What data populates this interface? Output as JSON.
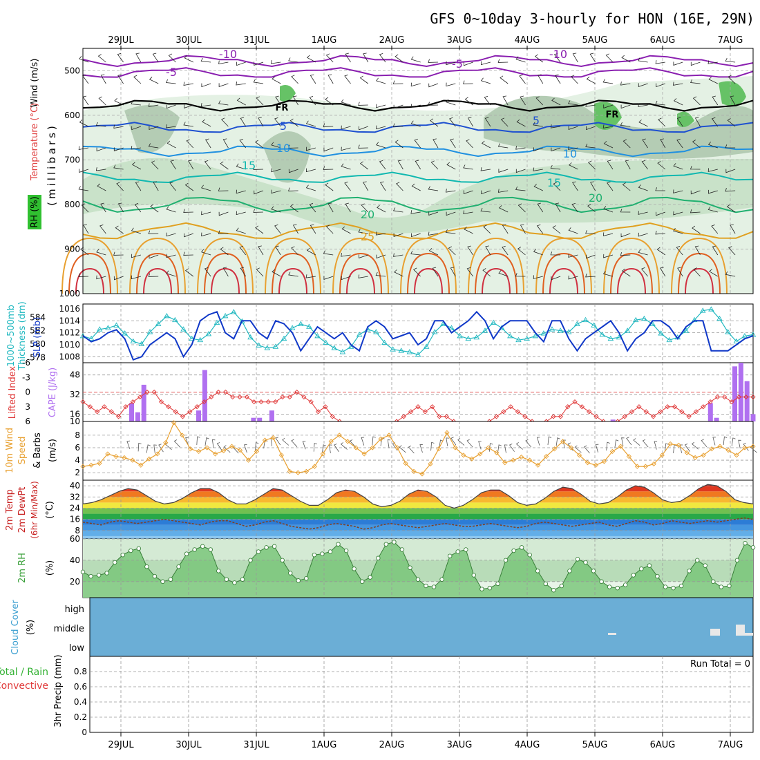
{
  "header": {
    "title": "GFS 0~10day 3-hourly for HON (16E, 29N)"
  },
  "chart_data": [
    {
      "type": "heatmap",
      "panel": "upper-air cross-section",
      "dates": [
        "29JUL",
        "30JUL",
        "31JUL",
        "1AUG",
        "2AUG",
        "3AUG",
        "4AUG",
        "5AUG",
        "6AUG",
        "7AUG"
      ],
      "ylabel": "(millibars)",
      "yticks": [
        500,
        600,
        700,
        800,
        900,
        1000
      ],
      "ylim": [
        1000,
        450
      ],
      "var_labels": {
        "wind": "Wind (m/s)",
        "temp": "Temperature (°C)",
        "rh": "RH (%)"
      },
      "colors": {
        "wind": "#000000",
        "temp": "#e04040",
        "rh": "#3c9e3c"
      },
      "isotherms": [
        {
          "label": "-10",
          "level_mb": 478,
          "color": "#8a1fb0"
        },
        {
          "label": "-5",
          "level_mb": 505,
          "color": "#8a1fb0"
        },
        {
          "label": "FR",
          "level_mb": 578,
          "color": "#000000"
        },
        {
          "label": "5",
          "level_mb": 628,
          "color": "#1e50d0"
        },
        {
          "label": "10",
          "level_mb": 680,
          "color": "#2090e0"
        },
        {
          "label": "15",
          "level_mb": 740,
          "color": "#10b8b0"
        },
        {
          "label": "20",
          "level_mb": 800,
          "color": "#20b070"
        },
        {
          "label": "25",
          "level_mb": 860,
          "color": "#e0a020"
        }
      ],
      "contour_labels": [
        "-10",
        "-5",
        "FR",
        "5",
        "10",
        "15",
        "20",
        "25",
        "-10",
        "-5",
        "FR",
        "5",
        "10",
        "15",
        "20"
      ]
    },
    {
      "type": "line",
      "panel": "SLP and thickness",
      "series": [
        {
          "name": "SLP (mb)",
          "color": "#1038c8",
          "values": [
            1011.5,
            1010.5,
            1011,
            1012,
            1012.5,
            1011,
            1007.5,
            1008,
            1010,
            1011,
            1012,
            1011,
            1008,
            1010,
            1014,
            1015,
            1015.5,
            1012,
            1011,
            1014,
            1014,
            1012,
            1011,
            1014,
            1013.5,
            1012,
            1009,
            1011,
            1013,
            1012,
            1011,
            1012,
            1010,
            1009,
            1013,
            1014,
            1013,
            1011,
            1011.5,
            1012,
            1010,
            1011,
            1014,
            1014,
            1012,
            1013,
            1014,
            1015.5,
            1014,
            1011,
            1013,
            1014,
            1014,
            1014,
            1012,
            1010.5,
            1014,
            1014,
            1011,
            1009,
            1011,
            1012,
            1013,
            1014,
            1012,
            1009,
            1011,
            1012,
            1014,
            1014,
            1013,
            1011,
            1013,
            1014,
            1014,
            1009,
            1009,
            1009,
            1010,
            1011,
            1011.5
          ]
        },
        {
          "name": "1000-500mb Thickness (dm)",
          "color": "#20b8c0",
          "values": [
            581.2,
            580.8,
            582.2,
            582.4,
            582.8,
            581.6,
            580.4,
            580.0,
            581.8,
            583.0,
            584.2,
            583.6,
            582.2,
            580.8,
            580.6,
            581.5,
            583.2,
            584.2,
            584.8,
            583.4,
            581.0,
            579.8,
            579.4,
            579.6,
            580.8,
            582.4,
            583.0,
            582.6,
            581.2,
            580.2,
            579.4,
            578.8,
            579.6,
            581.4,
            582.2,
            581.8,
            580.2,
            579.2,
            579.0,
            578.8,
            578.4,
            579.6,
            581.8,
            583.0,
            582.4,
            581.2,
            580.8,
            581.0,
            582.0,
            583.2,
            582.4,
            581.2,
            580.6,
            580.8,
            581.2,
            581.6,
            582.2,
            582.0,
            581.8,
            583.0,
            583.6,
            582.8,
            581.4,
            580.8,
            581.0,
            582.0,
            583.6,
            583.8,
            583.0,
            581.6,
            580.6,
            581.0,
            582.0,
            583.6,
            585.0,
            585.2,
            583.8,
            581.8,
            580.4,
            581.2,
            581.4
          ]
        }
      ],
      "slp_ticks": [
        1008,
        1010,
        1012,
        1014,
        1016
      ],
      "thk_ticks": [
        578,
        580,
        582,
        584
      ],
      "slp_label": "SLP (mb)",
      "thk_label_1": "1000~500mb",
      "thk_label_2": "Thickness (dm)"
    },
    {
      "type": "bar",
      "panel": "CAPE and Lifted Index",
      "series": [
        {
          "name": "CAPE (J/kg)",
          "color": "#b070f0",
          "values": [
            0,
            0,
            0,
            0,
            0,
            0,
            0,
            0,
            10,
            5,
            20,
            0,
            0,
            0,
            0,
            0,
            0,
            0,
            0,
            6,
            28,
            0,
            0,
            0,
            0,
            0,
            0,
            0,
            2,
            2,
            0,
            6,
            0,
            0,
            0,
            0,
            0,
            0,
            0,
            0,
            0,
            0,
            0,
            0,
            0,
            0,
            0,
            0,
            0,
            0,
            0,
            0,
            0,
            0,
            0,
            0,
            0,
            0,
            0,
            0,
            0,
            0,
            0,
            0,
            0,
            0,
            0,
            0,
            0,
            0,
            0,
            0,
            0,
            0,
            0,
            0,
            0,
            0,
            0,
            0,
            0,
            0,
            0,
            0,
            0,
            0,
            0,
            1,
            0,
            0,
            0,
            0,
            0,
            0,
            0,
            0,
            0,
            0,
            0,
            0,
            0,
            0,
            0,
            10,
            2,
            0,
            0,
            30,
            32,
            22,
            4
          ]
        },
        {
          "name": "Lifted Index",
          "color": "#e03838",
          "values": [
            2,
            3,
            4,
            3,
            4,
            5,
            3,
            2,
            1,
            0,
            0,
            2,
            3,
            4,
            5,
            4,
            3,
            2,
            1,
            0,
            0,
            1,
            1,
            1,
            2,
            2,
            2,
            2,
            1,
            1,
            0,
            1,
            2,
            4,
            3,
            5,
            6,
            7,
            8,
            9,
            7,
            8,
            8,
            7,
            6,
            5,
            4,
            3,
            4,
            3,
            5,
            5,
            6,
            7,
            8,
            9,
            8,
            6,
            5,
            4,
            3,
            4,
            5,
            6,
            7,
            6,
            5,
            5,
            3,
            2,
            3,
            4,
            5,
            6,
            8,
            6,
            5,
            4,
            3,
            4,
            5,
            4,
            3,
            3,
            4,
            5,
            4,
            3,
            2,
            1,
            1,
            2,
            1,
            1,
            1
          ]
        }
      ],
      "cape_ticks": [
        10,
        16,
        32,
        48
      ],
      "li_ticks": [
        6,
        3,
        0,
        -3,
        -6
      ],
      "cape_label": "CAPE (J/kg)",
      "li_label": "Lifted Index"
    },
    {
      "type": "line",
      "panel": "10m wind",
      "series": [
        {
          "name": "10m Wind Speed (m/s)",
          "color": "#e8a030",
          "values": [
            3,
            3.2,
            3.5,
            5,
            4.6,
            4.4,
            4,
            3.2,
            4.2,
            5,
            6.8,
            10,
            8,
            5.8,
            5.4,
            6,
            5,
            5.5,
            6.2,
            5.6,
            4,
            5.4,
            7.2,
            7.6,
            4.8,
            2.2,
            2,
            2.2,
            3,
            5,
            7,
            8,
            7,
            6,
            5,
            6,
            7.4,
            8,
            6,
            3.5,
            2.2,
            1.8,
            3.4,
            5.8,
            8.4,
            6,
            4.8,
            4.2,
            5,
            6,
            5.2,
            3.6,
            4,
            4.5,
            4,
            3.2,
            4.6,
            5.8,
            7,
            6,
            4.8,
            3.6,
            3.2,
            3.8,
            5.4,
            6.2,
            4.6,
            3,
            3,
            3.4,
            4.8,
            6.6,
            6.4,
            5.2,
            4.4,
            4.8,
            5.8,
            6.2,
            5.6,
            4.8,
            6,
            6.2
          ]
        }
      ],
      "yticks": [
        2,
        4,
        6,
        8
      ],
      "label_1": "10m Wind",
      "label_2": "Speed",
      "label_3": "& Barbs",
      "units": "(m/s)"
    },
    {
      "type": "area",
      "panel": "2m temperature",
      "series": [
        {
          "name": "2m Temp (°C)",
          "color": "#c82020",
          "values": [
            27,
            28,
            30,
            33,
            36,
            38,
            37,
            33,
            29,
            27,
            28,
            31,
            35,
            38,
            38,
            35,
            30,
            27,
            27,
            30,
            34,
            38,
            37,
            33,
            29,
            26,
            26,
            30,
            35,
            37,
            36,
            32,
            27,
            25,
            26,
            29,
            34,
            37,
            36,
            32,
            26,
            24,
            26,
            30,
            35,
            37,
            37,
            33,
            28,
            26,
            27,
            31,
            36,
            39,
            38,
            34,
            29,
            27,
            28,
            32,
            37,
            40,
            39,
            35,
            30,
            28,
            29,
            33,
            38,
            41,
            40,
            36,
            30,
            28,
            27
          ]
        },
        {
          "name": "2m DewPt (°C)",
          "color": "#704030",
          "values": [
            14,
            13,
            12,
            14,
            15,
            14,
            13,
            14,
            15,
            16,
            15,
            14,
            13,
            12,
            14,
            15,
            15,
            13,
            11,
            12,
            14,
            15,
            13,
            11,
            10,
            9,
            10,
            12,
            13,
            12,
            11,
            9,
            10,
            12,
            13,
            12,
            11,
            10,
            11,
            12,
            13,
            12,
            11,
            11,
            12,
            13,
            12,
            11,
            10,
            11,
            13,
            14,
            13,
            12,
            11,
            12,
            13,
            14,
            12,
            11,
            13,
            15,
            14,
            12,
            13,
            15,
            14,
            13,
            14,
            15,
            14,
            15,
            16,
            17,
            16
          ]
        }
      ],
      "yticks": [
        8,
        16,
        24,
        32,
        40
      ],
      "label_1": "2m Temp",
      "label_2": "2m DewPt",
      "label_3": "(6hr Min/Max)",
      "units": "(°C)"
    },
    {
      "type": "area",
      "panel": "2m relative humidity",
      "series": [
        {
          "name": "2m RH (%)",
          "color": "#3aa03a",
          "values": [
            29,
            25,
            26,
            28,
            38,
            45,
            49,
            51,
            34,
            25,
            20,
            22,
            34,
            46,
            50,
            53,
            50,
            30,
            22,
            19,
            22,
            40,
            48,
            52,
            53,
            40,
            28,
            21,
            23,
            45,
            46,
            48,
            55,
            49,
            32,
            20,
            24,
            42,
            55,
            57,
            50,
            33,
            22,
            16,
            15,
            22,
            44,
            48,
            50,
            26,
            13,
            14,
            18,
            40,
            49,
            52,
            45,
            30,
            18,
            12,
            16,
            30,
            41,
            38,
            30,
            20,
            15,
            14,
            17,
            26,
            32,
            35,
            25,
            15,
            14,
            16,
            30,
            40,
            35,
            20,
            15,
            16,
            40,
            56,
            52
          ]
        }
      ],
      "yticks": [
        20,
        40,
        60
      ],
      "label": "2m RH",
      "units": "(%)"
    },
    {
      "type": "heatmap",
      "panel": "cloud cover",
      "levels": [
        "high",
        "middle",
        "low"
      ],
      "label": "Cloud Cover",
      "units": "(%)",
      "color": "#6baed6"
    },
    {
      "type": "bar",
      "panel": "3hr precipitation",
      "values": [],
      "yticks": [
        "0",
        "0.2",
        "0.4",
        "0.6",
        "0.8"
      ],
      "ylim": [
        0,
        1
      ],
      "label_1": "Total / Rain",
      "label_2": "Convective",
      "ylabel": "3hr Precip (mm)",
      "run_total": "Run Total = 0"
    }
  ]
}
